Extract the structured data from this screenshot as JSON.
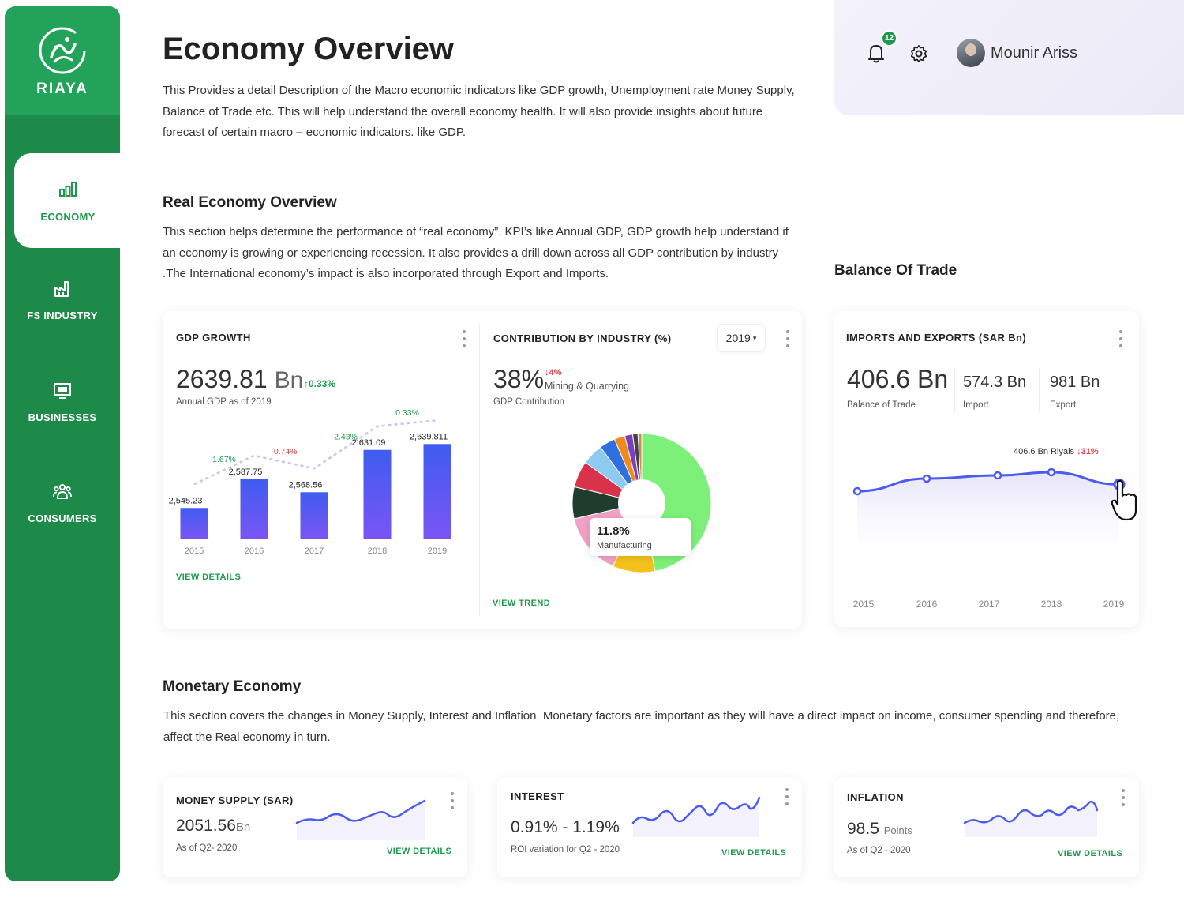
{
  "sidebar": {
    "logo_text": "RIAYA",
    "items": [
      {
        "label": "ECONOMY"
      },
      {
        "label": "FS INDUSTRY"
      },
      {
        "label": "BUSINESSES"
      },
      {
        "label": "CONSUMERS"
      }
    ]
  },
  "header": {
    "title": "Economy Overview",
    "intro": "This Provides a detail Description of the Macro economic indicators  like GDP growth, Unemployment rate Money Supply, Balance of Trade etc. This will help understand the overall economy health. It will also provide insights about future forecast of certain macro – economic indicators. like GDP.",
    "notification_count": "12",
    "user_name": "Mounir Ariss"
  },
  "real_economy": {
    "title": "Real Economy Overview",
    "description": "This section helps determine the performance of “real economy”. KPI’s like  Annual GDP, GDP growth help understand if an economy is growing or experiencing recession. It also provides a drill down across all  GDP contribution by industry .The International economy’s impact is also incorporated through Export and Imports."
  },
  "gdp_card": {
    "title": "GDP GROWTH",
    "value": "2639.81",
    "unit": "Bn",
    "change": "↑0.33%",
    "caption": "Annual GDP as of 2019",
    "link": "VIEW DETAILS"
  },
  "contribution_card": {
    "title": "CONTRIBUTION BY INDUSTRY (%)",
    "year": "2019",
    "value": "38%",
    "change": "↓4%",
    "sector": "Mining & Quarrying",
    "caption": "GDP Contribution",
    "tooltip_value": "11.8%",
    "tooltip_label": "Manufacturing",
    "link": "VIEW TREND"
  },
  "balance_trade": {
    "section_title": "Balance Of Trade",
    "card_title": "IMPORTS AND EXPORTS (SAR Bn)",
    "value": "406.6 Bn",
    "value_label": "Balance of Trade",
    "import_value": "574.3 Bn",
    "import_label": "Import",
    "export_value": "981 Bn",
    "export_label": "Export",
    "tooltip_value": "406.6 Bn Riyals",
    "tooltip_change": "↓31%"
  },
  "monetary": {
    "title": "Monetary Economy",
    "description": "This section covers the  changes in Money Supply, Interest and Inflation. Monetary factors are important as they will have a direct impact on  income, consumer spending and therefore, affect the Real economy  in turn."
  },
  "money_supply": {
    "title": "MONEY SUPPLY (SAR)",
    "value": "2051.56",
    "unit": "Bn",
    "caption": "As of Q2- 2020",
    "link": "VIEW DETAILS"
  },
  "interest": {
    "title": "INTEREST",
    "value": "0.91% - 1.19%",
    "caption": "ROI variation for Q2 - 2020",
    "link": "VIEW DETAILS"
  },
  "inflation": {
    "title": "INFLATION",
    "value": "98.5",
    "unit": "Points",
    "caption": "As of Q2 - 2020",
    "link": "VIEW DETAILS"
  },
  "chart_data": [
    {
      "type": "bar",
      "categories": [
        "2015",
        "2016",
        "2017",
        "2018",
        "2019"
      ],
      "values": [
        2545.23,
        2587.75,
        2568.56,
        2631.09,
        2639.811
      ],
      "value_labels": [
        "2,545.23",
        "2,587.75",
        "2,568.56",
        "2,631.09",
        "2,639.811"
      ],
      "growth_labels": [
        "1.67%",
        "-0.74%",
        "2.43%",
        "0.33%"
      ],
      "growth_colors": [
        "#1e9a4f",
        "#e23c4b",
        "#1e9a4f",
        "#1e9a4f"
      ],
      "ylim": [
        2500,
        2660
      ]
    },
    {
      "type": "pie",
      "values": [
        38,
        8,
        11.8,
        6,
        5,
        4,
        3,
        2,
        1.5,
        1,
        0.7
      ],
      "colors": [
        "#7df07a",
        "#f4c21b",
        "#f2a1c6",
        "#1f3d2c",
        "#d9334b",
        "#8ec9f0",
        "#2f6fe0",
        "#f08a1f",
        "#7a3fc0",
        "#444444",
        "#d98a4a"
      ]
    },
    {
      "type": "line",
      "categories": [
        "2015",
        "2016",
        "2017",
        "2018",
        "2019"
      ],
      "values": [
        398,
        414,
        418,
        422,
        406.6
      ],
      "ylim": [
        300,
        440
      ]
    }
  ]
}
